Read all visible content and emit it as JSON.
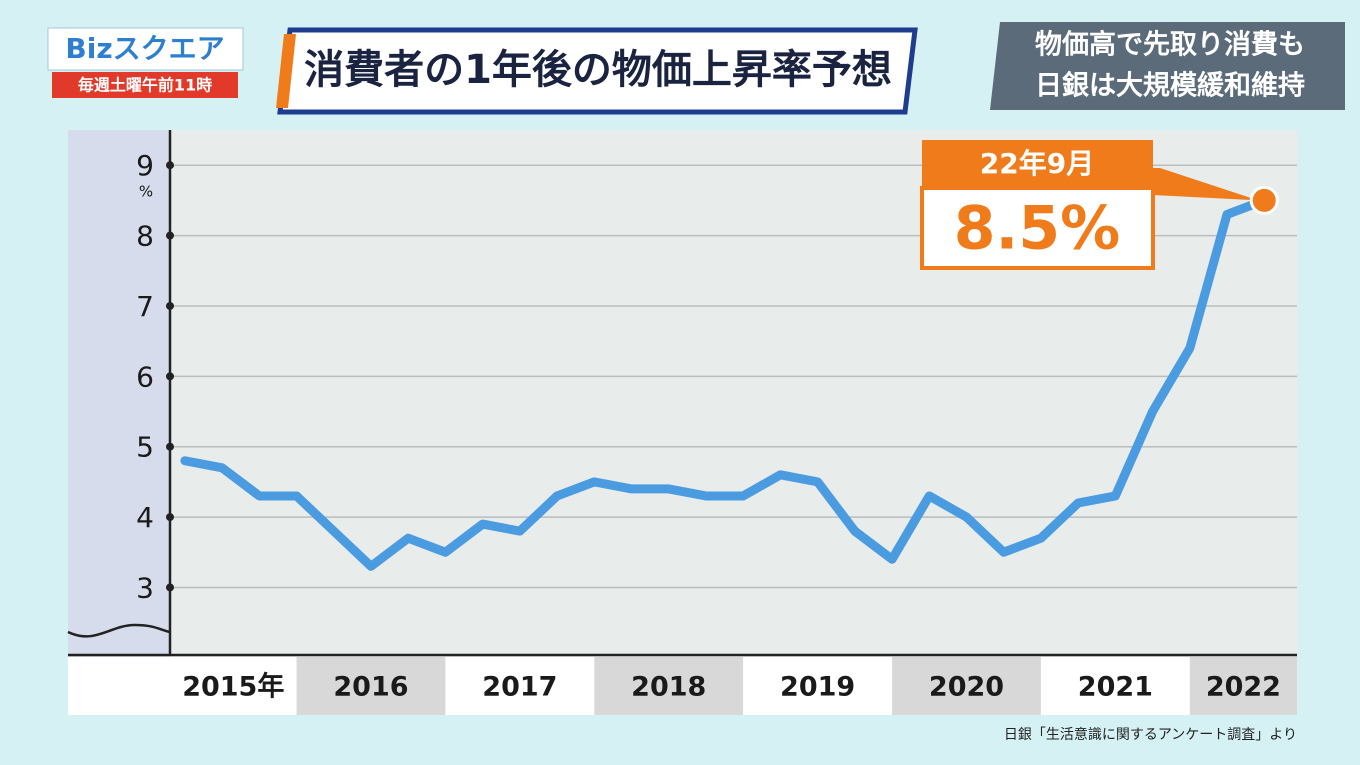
{
  "header": {
    "logo": "Bizスクエア",
    "schedule": "毎週土曜午前11時"
  },
  "side_caption": [
    "物価高で先取り消費も",
    "日銀は大規模緩和維持"
  ],
  "source": "日銀「生活意識に関するアンケート調査」より",
  "chart_data": {
    "type": "line",
    "title": "消費者の1年後の物価上昇率予想",
    "y_unit": "%",
    "x": [
      2015.25,
      2015.5,
      2015.75,
      2016.0,
      2016.25,
      2016.5,
      2016.75,
      2017.0,
      2017.25,
      2017.5,
      2017.75,
      2018.0,
      2018.25,
      2018.5,
      2018.75,
      2019.0,
      2019.25,
      2019.5,
      2019.75,
      2020.0,
      2020.25,
      2020.5,
      2020.75,
      2021.0,
      2021.25,
      2021.5,
      2021.75,
      2022.0,
      2022.25,
      2022.5
    ],
    "series": [
      {
        "name": null,
        "color": "#4a9be0",
        "values": [
          4.8,
          4.7,
          4.3,
          4.3,
          3.8,
          3.3,
          3.7,
          3.5,
          3.9,
          3.8,
          4.3,
          4.5,
          4.4,
          4.4,
          4.3,
          4.3,
          4.6,
          4.5,
          3.8,
          3.4,
          4.3,
          4.0,
          3.5,
          3.7,
          4.2,
          4.3,
          5.5,
          6.4,
          8.3,
          8.5
        ]
      }
    ],
    "annotation": {
      "date": "22年9月",
      "label": "8.5%"
    },
    "xlim": [
      2015.15,
      2022.72
    ],
    "xticks": [
      {
        "value": 2015,
        "label": "2015年"
      },
      2016,
      2017,
      2018,
      2019,
      2020,
      2021,
      2022
    ],
    "ylim": [
      2.04,
      9.5
    ],
    "yticks": [
      3,
      4,
      5,
      6,
      7,
      8,
      9
    ],
    "grid": true
  }
}
